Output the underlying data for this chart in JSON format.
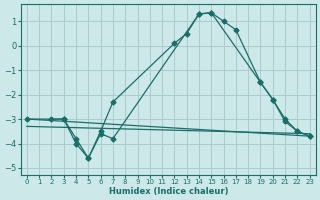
{
  "bg_color": "#cce8e8",
  "grid_color": "#aacccc",
  "line_color": "#1a6e6a",
  "xlabel": "Humidex (Indice chaleur)",
  "xlim": [
    -0.5,
    23.5
  ],
  "ylim": [
    -5.3,
    1.7
  ],
  "xticks": [
    0,
    1,
    2,
    3,
    4,
    5,
    6,
    7,
    8,
    9,
    10,
    11,
    12,
    13,
    14,
    15,
    16,
    17,
    18,
    19,
    20,
    21,
    22,
    23
  ],
  "yticks": [
    -5,
    -4,
    -3,
    -2,
    -1,
    0,
    1
  ],
  "line1_x": [
    2,
    3,
    4,
    5,
    6,
    7,
    12,
    13,
    14,
    15,
    16,
    17,
    19,
    20,
    21,
    22,
    23
  ],
  "line1_y": [
    -3.0,
    -3.0,
    -3.8,
    -4.6,
    -3.5,
    -2.3,
    0.1,
    0.5,
    1.3,
    1.35,
    1.0,
    0.65,
    -1.5,
    -2.2,
    -3.0,
    -3.5,
    -3.7
  ],
  "line2_x": [
    0,
    3,
    4,
    5,
    6,
    7,
    14,
    15,
    19,
    20,
    21,
    22,
    23
  ],
  "line2_y": [
    -3.0,
    -3.0,
    -4.0,
    -4.6,
    -3.6,
    -3.8,
    1.3,
    1.35,
    -1.5,
    -2.2,
    -3.1,
    -3.5,
    -3.7
  ],
  "line3_x": [
    0,
    23
  ],
  "line3_y": [
    -3.0,
    -3.7
  ],
  "line4_x": [
    0,
    23
  ],
  "line4_y": [
    -3.3,
    -3.6
  ]
}
